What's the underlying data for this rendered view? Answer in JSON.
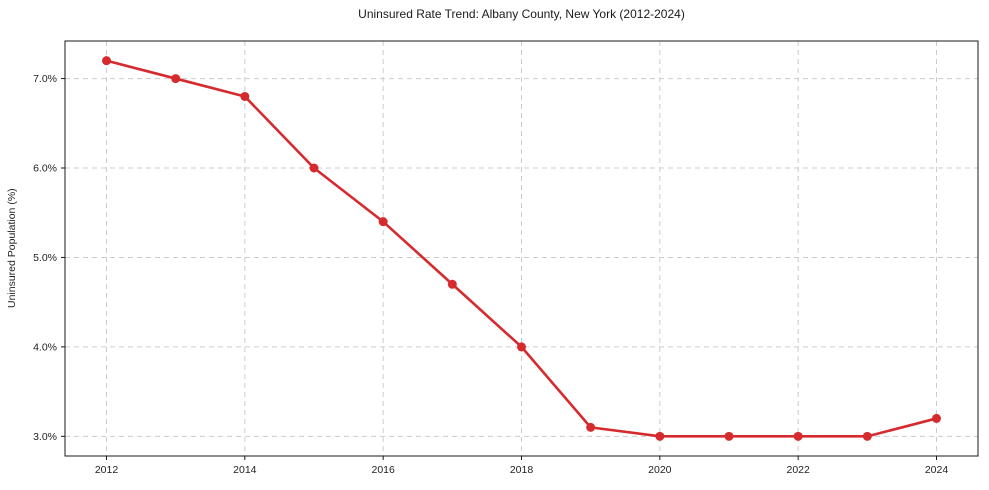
{
  "chart_data": {
    "type": "line",
    "title": "Uninsured Rate Trend: Albany County, New York (2012-2024)",
    "xlabel": "",
    "ylabel": "Uninsured Population (%)",
    "x": [
      2012,
      2013,
      2014,
      2015,
      2016,
      2017,
      2018,
      2019,
      2020,
      2021,
      2022,
      2023,
      2024
    ],
    "series": [
      {
        "name": "Uninsured rate",
        "color": "#d62b2e",
        "values": [
          7.2,
          7.0,
          6.8,
          6.0,
          5.4,
          4.7,
          4.0,
          3.1,
          3.0,
          3.0,
          3.0,
          3.0,
          3.2
        ]
      }
    ],
    "xticks": [
      2012,
      2014,
      2016,
      2018,
      2020,
      2022,
      2024
    ],
    "xtick_labels": [
      "2012",
      "2014",
      "2016",
      "2018",
      "2020",
      "2022",
      "2024"
    ],
    "yticks": [
      3.0,
      4.0,
      5.0,
      6.0,
      7.0
    ],
    "ytick_labels": [
      "3.0%",
      "4.0%",
      "5.0%",
      "6.0%",
      "7.0%"
    ],
    "xlim": [
      2011.4,
      2024.6
    ],
    "ylim": [
      2.78,
      7.42
    ],
    "grid": true,
    "grid_color": "#cccccc",
    "line_color": "#d62b2e",
    "marker": "circle",
    "legend": "none",
    "background_color": "#ffffff",
    "spine_color": "#1a1a1a"
  }
}
